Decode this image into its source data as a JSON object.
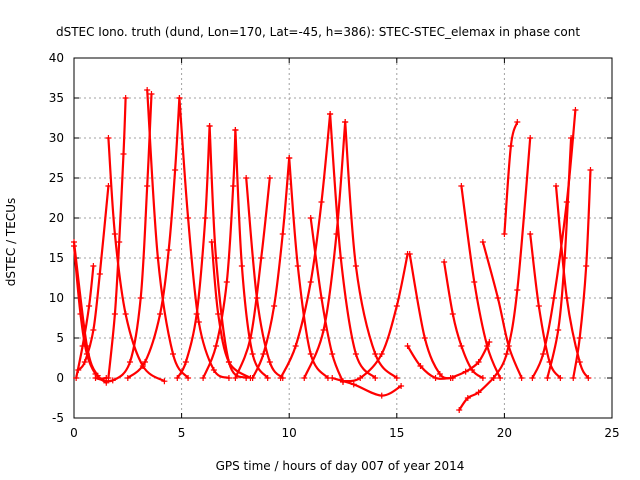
{
  "chart_data": {
    "type": "scatter",
    "title": "dSTEC Iono. truth (dund, Lon=170, Lat=-45, h=386): STEC-STEC_elemax in phase cont",
    "xlabel": "GPS time / hours of day 007 of year 2014",
    "ylabel": "dSTEC  / TECUs",
    "xlim": [
      0,
      25
    ],
    "ylim": [
      -5,
      40
    ],
    "xticks": [
      0,
      5,
      10,
      15,
      20,
      25
    ],
    "yticks": [
      -5,
      0,
      5,
      10,
      15,
      20,
      25,
      30,
      35,
      40
    ],
    "grid": true,
    "legend": "none",
    "marker": "+",
    "color": "#ff0000",
    "series": [
      {
        "x": [
          0.0,
          0.3,
          0.6,
          1.0,
          1.5
        ],
        "y": [
          16.5,
          8.0,
          3.0,
          0.5,
          -0.6
        ]
      },
      {
        "x": [
          0.1,
          0.4,
          0.7,
          0.9
        ],
        "y": [
          0.0,
          4.0,
          9.0,
          14.0
        ]
      },
      {
        "x": [
          0.0,
          0.6,
          1.1,
          1.5
        ],
        "y": [
          17.0,
          4.0,
          0.3,
          0.0
        ]
      },
      {
        "x": [
          1.6,
          1.9,
          2.1,
          2.3,
          2.4
        ],
        "y": [
          0.0,
          8.0,
          17.0,
          28.0,
          35.0
        ]
      },
      {
        "x": [
          1.6,
          1.9,
          2.4,
          3.2,
          4.2
        ],
        "y": [
          30.0,
          18.0,
          8.0,
          1.5,
          -0.4
        ]
      },
      {
        "x": [
          0.2,
          0.5,
          0.9,
          1.2,
          1.6
        ],
        "y": [
          1.0,
          2.0,
          6.0,
          13.0,
          24.0
        ]
      },
      {
        "x": [
          1.0,
          1.8,
          2.6,
          3.1,
          3.4,
          3.6
        ],
        "y": [
          0.0,
          -0.3,
          2.0,
          10.0,
          24.0,
          35.5
        ]
      },
      {
        "x": [
          3.4,
          3.9,
          4.6,
          5.3
        ],
        "y": [
          36.0,
          15.0,
          3.0,
          0.0
        ]
      },
      {
        "x": [
          2.5,
          3.3,
          4.0,
          4.4,
          4.7,
          4.9
        ],
        "y": [
          0.0,
          2.0,
          8.0,
          16.0,
          26.0,
          35.0
        ]
      },
      {
        "x": [
          4.9,
          5.3,
          5.8,
          6.5,
          7.2
        ],
        "y": [
          35.0,
          20.0,
          7.0,
          1.0,
          0.0
        ]
      },
      {
        "x": [
          4.8,
          5.2,
          5.7,
          6.1,
          6.3
        ],
        "y": [
          0.0,
          2.0,
          8.0,
          20.0,
          31.5
        ]
      },
      {
        "x": [
          6.3,
          6.6,
          7.2,
          8.0
        ],
        "y": [
          31.5,
          15.0,
          2.0,
          0.0
        ]
      },
      {
        "x": [
          6.0,
          6.6,
          7.1,
          7.4,
          7.5
        ],
        "y": [
          0.0,
          4.0,
          12.0,
          24.0,
          31.0
        ]
      },
      {
        "x": [
          7.5,
          7.8,
          8.3,
          9.0
        ],
        "y": [
          31.0,
          14.0,
          3.0,
          0.0
        ]
      },
      {
        "x": [
          6.4,
          6.7,
          7.2,
          8.2
        ],
        "y": [
          17.0,
          8.0,
          2.0,
          0.0
        ]
      },
      {
        "x": [
          7.5,
          8.2,
          8.7,
          9.1
        ],
        "y": [
          0.0,
          5.0,
          15.0,
          25.0
        ]
      },
      {
        "x": [
          8.0,
          8.5,
          9.1,
          9.7
        ],
        "y": [
          25.0,
          10.0,
          2.0,
          0.0
        ]
      },
      {
        "x": [
          8.3,
          8.8,
          9.3,
          9.7,
          10.0
        ],
        "y": [
          0.0,
          3.0,
          9.0,
          18.0,
          27.5
        ]
      },
      {
        "x": [
          10.0,
          10.4,
          11.0,
          11.8
        ],
        "y": [
          27.5,
          14.0,
          3.0,
          0.0
        ]
      },
      {
        "x": [
          9.6,
          10.3,
          11.0,
          11.5,
          11.9
        ],
        "y": [
          0.0,
          4.0,
          12.0,
          22.0,
          33.0
        ]
      },
      {
        "x": [
          11.9,
          12.4,
          13.1,
          14.0
        ],
        "y": [
          33.0,
          15.0,
          3.0,
          0.0
        ]
      },
      {
        "x": [
          10.7,
          11.6,
          12.2,
          12.6
        ],
        "y": [
          0.0,
          6.0,
          18.0,
          32.0
        ]
      },
      {
        "x": [
          12.6,
          13.1,
          14.0,
          15.0
        ],
        "y": [
          32.0,
          14.0,
          3.0,
          0.0
        ]
      },
      {
        "x": [
          11.0,
          11.5,
          12.0,
          12.5
        ],
        "y": [
          20.0,
          10.0,
          3.0,
          -0.5
        ]
      },
      {
        "x": [
          12.5,
          13.3,
          14.3,
          15.0,
          15.5
        ],
        "y": [
          -0.4,
          0.0,
          3.0,
          9.0,
          15.5
        ]
      },
      {
        "x": [
          12.0,
          13.0,
          14.3,
          15.2
        ],
        "y": [
          0.0,
          -0.8,
          -2.2,
          -1.0
        ]
      },
      {
        "x": [
          15.5,
          16.1,
          16.8,
          17.5
        ],
        "y": [
          4.0,
          1.5,
          0.0,
          0.0
        ]
      },
      {
        "x": [
          15.6,
          16.3,
          17.0,
          17.6
        ],
        "y": [
          15.5,
          5.0,
          0.5,
          0.0
        ]
      },
      {
        "x": [
          17.5,
          18.2,
          18.8,
          19.3
        ],
        "y": [
          0.0,
          0.8,
          2.0,
          4.5
        ]
      },
      {
        "x": [
          17.2,
          17.6,
          18.0,
          18.5,
          19.0
        ],
        "y": [
          14.5,
          8.0,
          4.0,
          1.0,
          0.0
        ]
      },
      {
        "x": [
          17.9,
          18.3,
          18.8,
          19.5
        ],
        "y": [
          -4.0,
          -2.5,
          -1.8,
          0.0
        ]
      },
      {
        "x": [
          18.0,
          18.6,
          19.2,
          19.8
        ],
        "y": [
          24.0,
          12.0,
          4.0,
          0.0
        ]
      },
      {
        "x": [
          19.0,
          19.7,
          20.2,
          20.8
        ],
        "y": [
          17.0,
          10.0,
          4.0,
          0.0
        ]
      },
      {
        "x": [
          19.5,
          20.1,
          20.6,
          21.2
        ],
        "y": [
          0.0,
          3.0,
          11.0,
          30.0
        ]
      },
      {
        "x": [
          20.0,
          20.3,
          20.6
        ],
        "y": [
          18.0,
          29.0,
          32.0
        ]
      },
      {
        "x": [
          21.2,
          21.6,
          22.1,
          22.6
        ],
        "y": [
          18.0,
          9.0,
          2.0,
          0.0
        ]
      },
      {
        "x": [
          21.3,
          21.8,
          22.3,
          22.9,
          23.3
        ],
        "y": [
          0.0,
          3.0,
          10.0,
          22.0,
          33.5
        ]
      },
      {
        "x": [
          22.0,
          22.5,
          22.8,
          23.1
        ],
        "y": [
          0.0,
          6.0,
          15.0,
          30.0
        ]
      },
      {
        "x": [
          22.4,
          22.9,
          23.5,
          23.9
        ],
        "y": [
          24.0,
          10.0,
          2.0,
          0.0
        ]
      },
      {
        "x": [
          23.2,
          23.5,
          23.8,
          24.0
        ],
        "y": [
          0.0,
          5.0,
          14.0,
          26.0
        ]
      }
    ]
  }
}
